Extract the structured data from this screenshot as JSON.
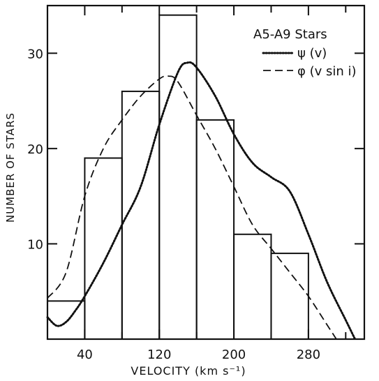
{
  "chart_data": {
    "type": "bar",
    "title": "",
    "xlabel": "VELOCITY (km s⁻¹)",
    "ylabel": "NUMBER OF STARS",
    "xlim": [
      0,
      340
    ],
    "ylim": [
      0,
      35
    ],
    "x_ticks": [
      40,
      120,
      200,
      280
    ],
    "y_ticks": [
      10,
      20,
      30
    ],
    "legend": {
      "placement": "top-right",
      "heading": "A5-A9 Stars"
    },
    "bars": [
      {
        "x0": 0,
        "x1": 40,
        "value": 4
      },
      {
        "x0": 40,
        "x1": 80,
        "value": 19
      },
      {
        "x0": 80,
        "x1": 120,
        "value": 26
      },
      {
        "x0": 120,
        "x1": 160,
        "value": 34
      },
      {
        "x0": 160,
        "x1": 200,
        "value": 23
      },
      {
        "x0": 200,
        "x1": 240,
        "value": 11
      },
      {
        "x0": 240,
        "x1": 280,
        "value": 9
      }
    ],
    "series": [
      {
        "name": "ψ (v)",
        "style": "dotted",
        "points": [
          [
            0,
            2.3
          ],
          [
            10,
            1.4
          ],
          [
            20,
            1.8
          ],
          [
            30,
            3.0
          ],
          [
            40,
            4.5
          ],
          [
            60,
            8.0
          ],
          [
            80,
            12.0
          ],
          [
            100,
            16.0
          ],
          [
            120,
            22.5
          ],
          [
            140,
            28.0
          ],
          [
            150,
            29.0
          ],
          [
            160,
            28.5
          ],
          [
            180,
            25.5
          ],
          [
            200,
            21.5
          ],
          [
            220,
            18.5
          ],
          [
            240,
            17.0
          ],
          [
            260,
            15.5
          ],
          [
            280,
            11.0
          ],
          [
            300,
            6.0
          ],
          [
            320,
            2.0
          ],
          [
            330,
            0
          ]
        ]
      },
      {
        "name": "φ (v sin i)",
        "style": "dashed",
        "points": [
          [
            0,
            4.3
          ],
          [
            20,
            7.0
          ],
          [
            40,
            15.0
          ],
          [
            60,
            20.0
          ],
          [
            80,
            23.0
          ],
          [
            100,
            25.5
          ],
          [
            120,
            27.3
          ],
          [
            130,
            27.6
          ],
          [
            140,
            27.0
          ],
          [
            160,
            23.5
          ],
          [
            180,
            20.0
          ],
          [
            200,
            16.0
          ],
          [
            220,
            12.0
          ],
          [
            240,
            9.5
          ],
          [
            260,
            7.0
          ],
          [
            280,
            4.5
          ],
          [
            300,
            1.5
          ],
          [
            310,
            0
          ]
        ]
      }
    ]
  }
}
